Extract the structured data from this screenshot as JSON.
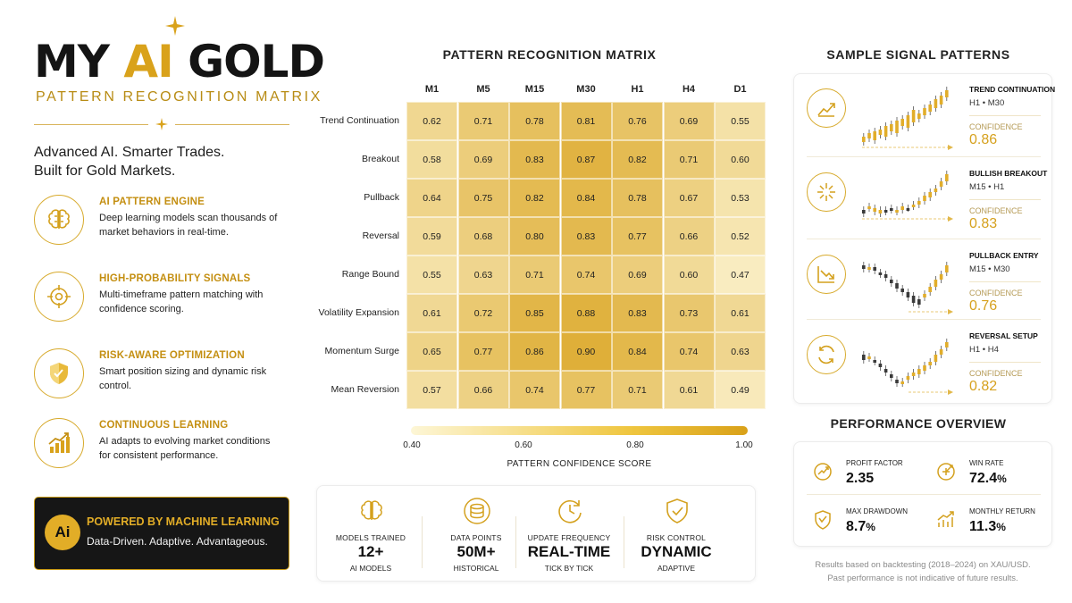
{
  "brand": {
    "logo_part1": "MY ",
    "logo_part2": "AI",
    "logo_part3": " GOLD",
    "subtitle": "PATTERN RECOGNITION MATRIX",
    "tagline_line1": "Advanced AI. Smarter Trades.",
    "tagline_line2": "Built for Gold Markets."
  },
  "features": [
    {
      "icon": "brain-icon",
      "title": "AI PATTERN ENGINE",
      "desc": "Deep learning models scan thousands of market behaviors in real-time."
    },
    {
      "icon": "target-icon",
      "title": "HIGH-PROBABILITY SIGNALS",
      "desc": "Multi-timeframe pattern matching with confidence scoring."
    },
    {
      "icon": "shield-icon",
      "title": "RISK-AWARE OPTIMIZATION",
      "desc": "Smart position sizing and dynamic risk control."
    },
    {
      "icon": "growth-chart-icon",
      "title": "CONTINUOUS LEARNING",
      "desc": "AI adapts to evolving market conditions for consistent performance."
    }
  ],
  "ml_banner": {
    "badge": "Ai",
    "title": "POWERED BY MACHINE LEARNING",
    "desc": "Data-Driven. Adaptive. Advantageous."
  },
  "matrix": {
    "title": "PATTERN RECOGNITION MATRIX",
    "columns": [
      "M1",
      "M5",
      "M15",
      "M30",
      "H1",
      "H4",
      "D1"
    ],
    "rows": [
      "Trend Continuation",
      "Breakout",
      "Pullback",
      "Reversal",
      "Range Bound",
      "Volatility Expansion",
      "Momentum Surge",
      "Mean Reversion"
    ],
    "legend_ticks": [
      "0.40",
      "0.60",
      "0.80",
      "1.00"
    ],
    "legend_title": "PATTERN CONFIDENCE SCORE"
  },
  "chart_data": {
    "type": "heatmap",
    "title": "PATTERN RECOGNITION MATRIX",
    "x_categories": [
      "M1",
      "M5",
      "M15",
      "M30",
      "H1",
      "H4",
      "D1"
    ],
    "y_categories": [
      "Trend Continuation",
      "Breakout",
      "Pullback",
      "Reversal",
      "Range Bound",
      "Volatility Expansion",
      "Momentum Surge",
      "Mean Reversion"
    ],
    "values": [
      [
        0.62,
        0.71,
        0.78,
        0.81,
        0.76,
        0.69,
        0.55
      ],
      [
        0.58,
        0.69,
        0.83,
        0.87,
        0.82,
        0.71,
        0.6
      ],
      [
        0.64,
        0.75,
        0.82,
        0.84,
        0.78,
        0.67,
        0.53
      ],
      [
        0.59,
        0.68,
        0.8,
        0.83,
        0.77,
        0.66,
        0.52
      ],
      [
        0.55,
        0.63,
        0.71,
        0.74,
        0.69,
        0.6,
        0.47
      ],
      [
        0.61,
        0.72,
        0.85,
        0.88,
        0.83,
        0.73,
        0.61
      ],
      [
        0.65,
        0.77,
        0.86,
        0.9,
        0.84,
        0.74,
        0.63
      ],
      [
        0.57,
        0.66,
        0.74,
        0.77,
        0.71,
        0.61,
        0.49
      ]
    ],
    "value_labels": [
      [
        "0.62",
        "0.71",
        "0.78",
        "0.81",
        "0.76",
        "0.69",
        "0.55"
      ],
      [
        "0.58",
        "0.69",
        "0.83",
        "0.87",
        "0.82",
        "0.71",
        "0.60"
      ],
      [
        "0.64",
        "0.75",
        "0.82",
        "0.84",
        "0.78",
        "0.67",
        "0.53"
      ],
      [
        "0.59",
        "0.68",
        "0.80",
        "0.83",
        "0.77",
        "0.66",
        "0.52"
      ],
      [
        "0.55",
        "0.63",
        "0.71",
        "0.74",
        "0.69",
        "0.60",
        "0.47"
      ],
      [
        "0.61",
        "0.72",
        "0.85",
        "0.88",
        "0.83",
        "0.73",
        "0.61"
      ],
      [
        "0.65",
        "0.77",
        "0.86",
        "0.90",
        "0.84",
        "0.74",
        "0.63"
      ],
      [
        "0.57",
        "0.66",
        "0.74",
        "0.77",
        "0.71",
        "0.61",
        "0.49"
      ]
    ],
    "scale": [
      0.4,
      1.0
    ],
    "colorbar_label": "PATTERN CONFIDENCE SCORE",
    "colors": {
      "low": "#fdf6d6",
      "high": "#d9a119"
    }
  },
  "stats": [
    {
      "icon": "brain-icon",
      "label": "MODELS TRAINED",
      "value": "12+",
      "sub": "AI MODELS"
    },
    {
      "icon": "database-icon",
      "label": "DATA POINTS",
      "value": "50M+",
      "sub": "HISTORICAL"
    },
    {
      "icon": "clock-icon",
      "label": "UPDATE FREQUENCY",
      "value": "REAL-TIME",
      "sub": "TICK BY TICK"
    },
    {
      "icon": "shield-check-icon",
      "label": "RISK CONTROL",
      "value": "DYNAMIC",
      "sub": "ADAPTIVE"
    }
  ],
  "signals": {
    "title": "SAMPLE SIGNAL PATTERNS",
    "items": [
      {
        "icon": "trend-up-icon",
        "title": "TREND CONTINUATION",
        "tf1": "H1",
        "tf2": "M30",
        "sep": "•",
        "conf_label": "CONFIDENCE",
        "conf": "0.86"
      },
      {
        "icon": "burst-icon",
        "title": "BULLISH BREAKOUT",
        "tf1": "M15",
        "tf2": "H1",
        "sep": "•",
        "conf_label": "CONFIDENCE",
        "conf": "0.83"
      },
      {
        "icon": "pullback-icon",
        "title": "PULLBACK ENTRY",
        "tf1": "M15",
        "tf2": "M30",
        "sep": "•",
        "conf_label": "CONFIDENCE",
        "conf": "0.76"
      },
      {
        "icon": "cycle-icon",
        "title": "REVERSAL SETUP",
        "tf1": "H1",
        "tf2": "H4",
        "sep": "•",
        "conf_label": "CONFIDENCE",
        "conf": "0.82"
      }
    ]
  },
  "performance": {
    "title": "PERFORMANCE OVERVIEW",
    "items": [
      {
        "icon": "profit-icon",
        "label": "PROFIT FACTOR",
        "value": "2.35",
        "unit": ""
      },
      {
        "icon": "target-arrow-icon",
        "label": "WIN RATE",
        "value": "72.4",
        "unit": "%"
      },
      {
        "icon": "drawdown-shield-icon",
        "label": "MAX DRAWDOWN",
        "value": "8.7",
        "unit": "%"
      },
      {
        "icon": "bar-growth-icon",
        "label": "MONTHLY RETURN",
        "value": "11.3",
        "unit": "%"
      }
    ]
  },
  "disclaimer_line1": "Results based on backtesting (2018–2024) on XAU/USD.",
  "disclaimer_line2": "Past performance is not indicative of future results.",
  "colors": {
    "gold": "#d9a21b",
    "dark": "#161616",
    "accent_text": "#c48f12"
  }
}
